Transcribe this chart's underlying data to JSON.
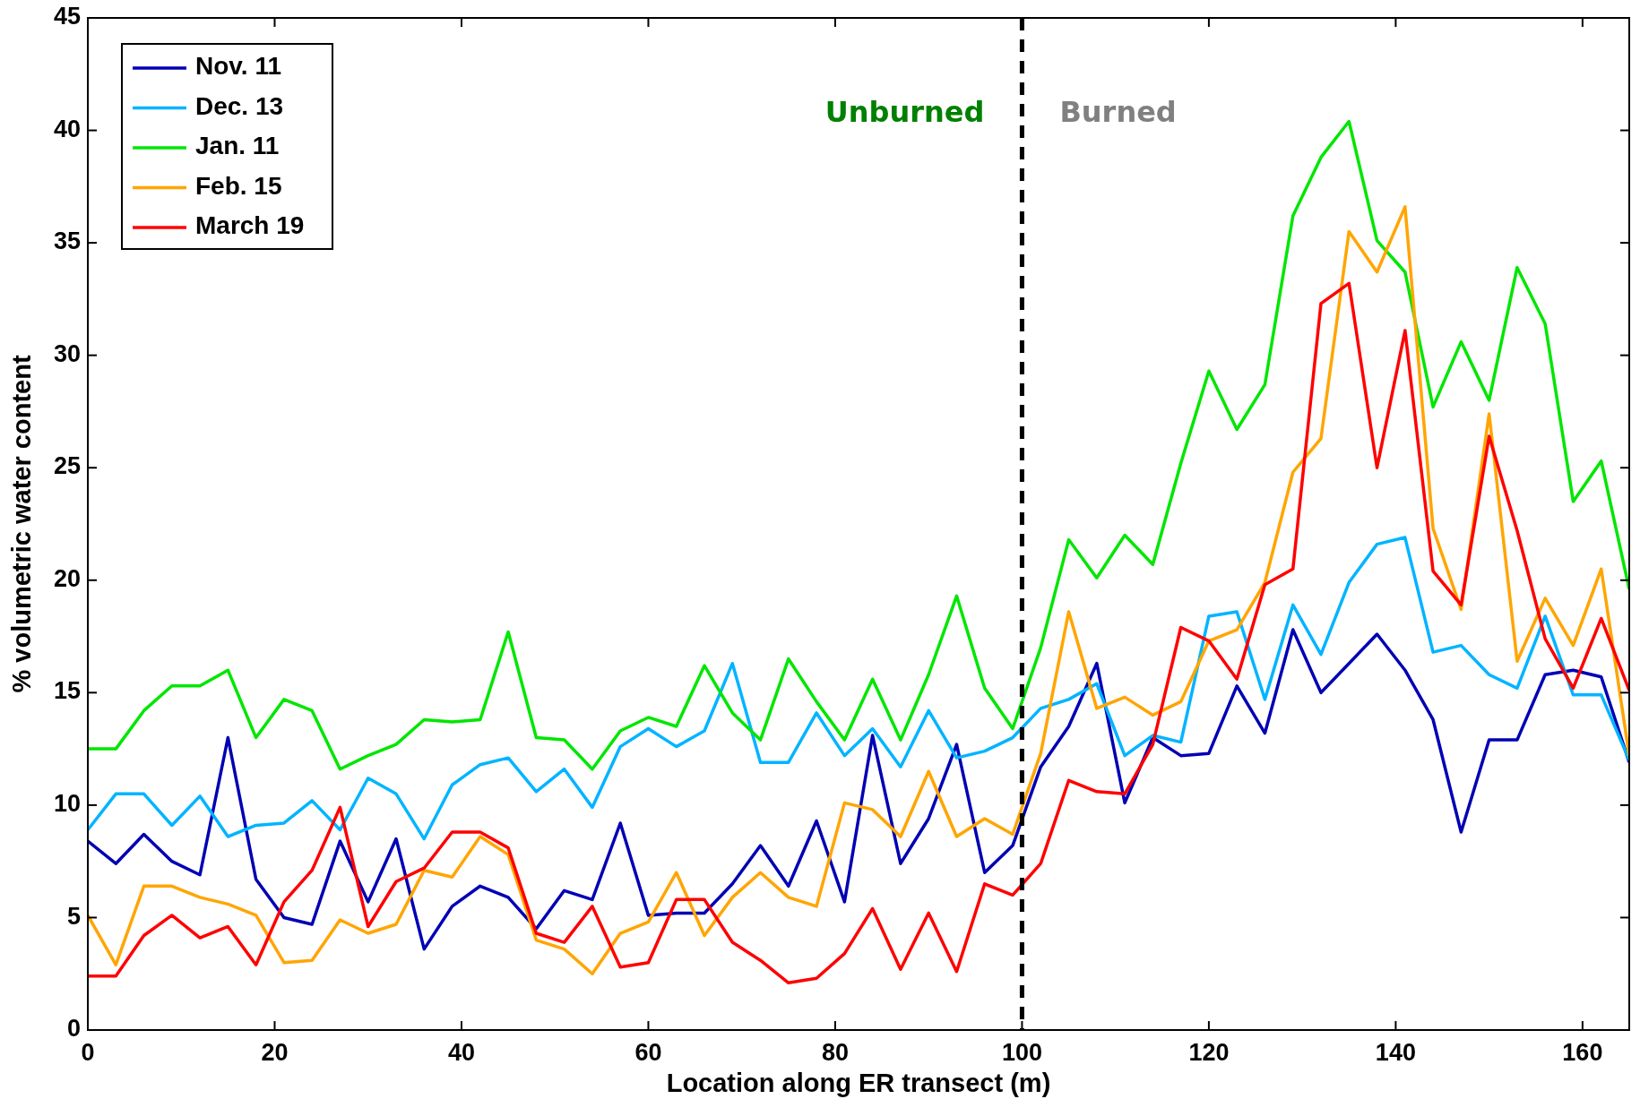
{
  "chart_data": {
    "type": "line",
    "xlabel": "Location along ER transect (m)",
    "ylabel": "% volumetric water content",
    "x": [
      0,
      3,
      6,
      9,
      12,
      15,
      18,
      21,
      24,
      27,
      30,
      33,
      36,
      39,
      42,
      45,
      48,
      51,
      54,
      57,
      60,
      63,
      66,
      69,
      72,
      75,
      78,
      81,
      84,
      87,
      90,
      93,
      96,
      99,
      102,
      105,
      108,
      111,
      114,
      117,
      120,
      123,
      126,
      129,
      132,
      135,
      138,
      141,
      144,
      147,
      150,
      153,
      156,
      159,
      162,
      165
    ],
    "series": [
      {
        "name": "Nov. 11",
        "color": "#0000b4",
        "values": [
          8.4,
          7.4,
          8.7,
          7.5,
          6.9,
          13.0,
          6.7,
          5.0,
          4.7,
          8.4,
          5.7,
          8.5,
          3.6,
          5.5,
          6.4,
          5.9,
          4.5,
          6.2,
          5.8,
          9.2,
          5.1,
          5.2,
          5.2,
          6.5,
          8.2,
          6.4,
          9.3,
          5.7,
          13.1,
          7.4,
          9.4,
          12.7,
          7.0,
          8.2,
          11.7,
          13.5,
          16.3,
          10.1,
          13.0,
          12.2,
          12.3,
          15.3,
          13.2,
          17.8,
          15.0,
          16.3,
          17.6,
          16.0,
          13.8,
          8.8,
          12.9,
          12.9,
          15.8,
          16.0,
          15.7,
          11.9
        ]
      },
      {
        "name": "Dec. 13",
        "color": "#00b4ff",
        "values": [
          8.9,
          10.5,
          10.5,
          9.1,
          10.4,
          8.6,
          9.1,
          9.2,
          10.2,
          8.9,
          11.2,
          10.5,
          8.5,
          10.9,
          11.8,
          12.1,
          10.6,
          11.6,
          9.9,
          12.6,
          13.4,
          12.6,
          13.3,
          16.3,
          11.9,
          11.9,
          14.1,
          12.2,
          13.4,
          11.7,
          14.2,
          12.1,
          12.4,
          13.0,
          14.3,
          14.7,
          15.4,
          12.2,
          13.1,
          12.8,
          18.4,
          18.6,
          14.7,
          18.9,
          16.7,
          19.9,
          21.6,
          21.9,
          16.8,
          17.1,
          15.8,
          15.2,
          18.4,
          14.9,
          14.9,
          12.0
        ]
      },
      {
        "name": "Jan. 11",
        "color": "#00e600",
        "values": [
          12.5,
          12.5,
          14.2,
          15.3,
          15.3,
          16.0,
          13.0,
          14.7,
          14.2,
          11.6,
          12.2,
          12.7,
          13.8,
          13.7,
          13.8,
          17.7,
          13.0,
          12.9,
          11.6,
          13.3,
          13.9,
          13.5,
          16.2,
          14.1,
          12.9,
          16.5,
          14.6,
          12.9,
          15.6,
          12.9,
          15.8,
          19.3,
          15.2,
          13.4,
          17.0,
          21.8,
          20.1,
          22.0,
          20.7,
          25.2,
          29.3,
          26.7,
          28.7,
          36.2,
          38.8,
          40.4,
          35.1,
          33.7,
          27.7,
          30.6,
          28.0,
          33.9,
          31.4,
          23.5,
          25.3,
          19.6
        ]
      },
      {
        "name": "Feb. 15",
        "color": "#ffa500",
        "values": [
          5.1,
          2.9,
          6.4,
          6.4,
          5.9,
          5.6,
          5.1,
          3.0,
          3.1,
          4.9,
          4.3,
          4.7,
          7.1,
          6.8,
          8.6,
          7.8,
          4.0,
          3.6,
          2.5,
          4.3,
          4.8,
          7.0,
          4.2,
          5.9,
          7.0,
          5.9,
          5.5,
          10.1,
          9.8,
          8.6,
          11.5,
          8.6,
          9.4,
          8.7,
          12.3,
          18.6,
          14.3,
          14.8,
          14.0,
          14.6,
          17.3,
          17.8,
          19.9,
          24.8,
          26.3,
          35.5,
          33.7,
          36.6,
          22.3,
          18.7,
          27.4,
          16.4,
          19.2,
          17.1,
          20.5,
          12.2
        ]
      },
      {
        "name": "March 19",
        "color": "#ff0000",
        "values": [
          2.4,
          2.4,
          4.2,
          5.1,
          4.1,
          4.6,
          2.9,
          5.7,
          7.1,
          9.9,
          4.6,
          6.6,
          7.2,
          8.8,
          8.8,
          8.1,
          4.3,
          3.9,
          5.5,
          2.8,
          3.0,
          5.8,
          5.8,
          3.9,
          3.1,
          2.1,
          2.3,
          3.4,
          5.4,
          2.7,
          5.2,
          2.6,
          6.5,
          6.0,
          7.4,
          11.1,
          10.6,
          10.5,
          12.7,
          17.9,
          17.3,
          15.6,
          19.8,
          20.5,
          32.3,
          33.2,
          25.0,
          31.1,
          20.4,
          18.9,
          26.4,
          22.2,
          17.4,
          15.2,
          18.3,
          15.1
        ]
      }
    ],
    "xlim": [
      0,
      165
    ],
    "xticks": [
      0,
      20,
      40,
      60,
      80,
      100,
      120,
      140,
      160
    ],
    "ylim": [
      0,
      45
    ],
    "yticks": [
      0,
      5,
      10,
      15,
      20,
      25,
      30,
      35,
      40,
      45
    ],
    "ref_lines": [
      {
        "axis": "x",
        "value": 100,
        "color": "#000000",
        "line_style": "dashed"
      }
    ],
    "annotations": [
      "Unburned",
      "Burned"
    ],
    "legend": "top left",
    "grid": false
  }
}
